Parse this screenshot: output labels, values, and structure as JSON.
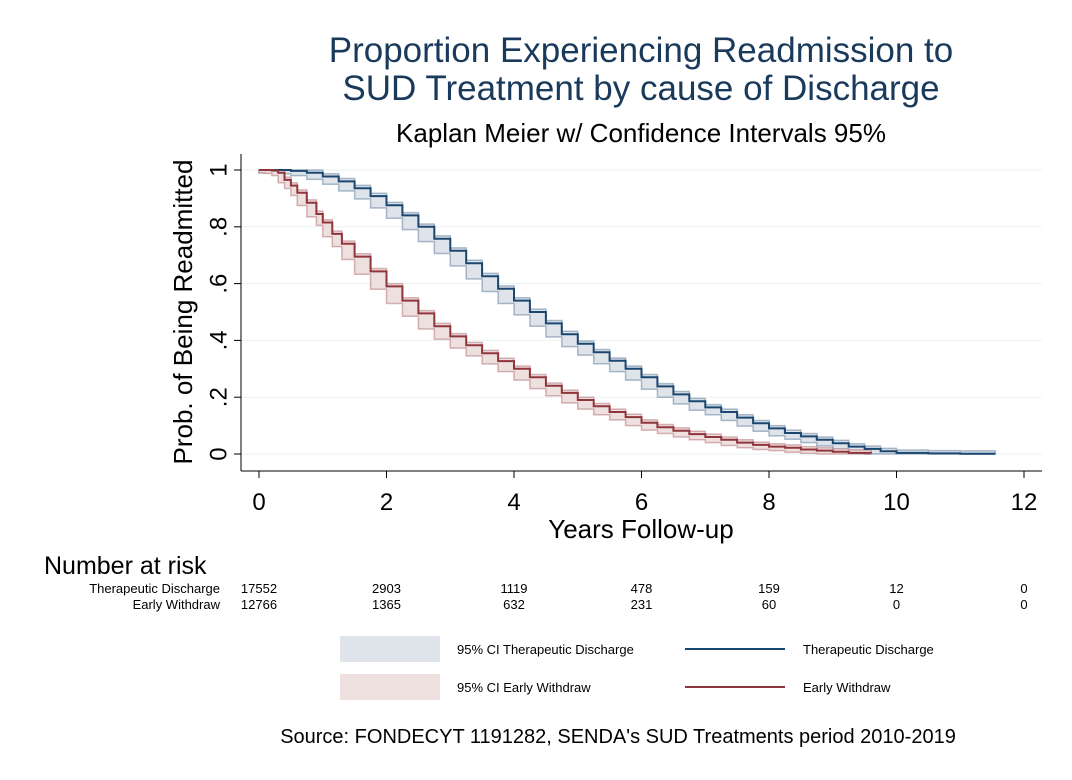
{
  "chart_data": {
    "type": "line",
    "title_line1": "Proportion Experiencing Readmission to",
    "title_line2": "SUD Treatment by cause of Discharge",
    "subtitle": "Kaplan Meier w/ Confidence Intervals 95%",
    "xlabel": "Years Follow-up",
    "ylabel": "Prob. of Being Readmitted",
    "xlim": [
      0,
      12
    ],
    "ylim": [
      0,
      1
    ],
    "xticks": [
      0,
      2,
      4,
      6,
      8,
      10,
      12
    ],
    "xtick_labels": [
      "0",
      "2",
      "4",
      "6",
      "8",
      "10",
      "12"
    ],
    "yticks": [
      0,
      0.2,
      0.4,
      0.6,
      0.8,
      1
    ],
    "ytick_labels": [
      "0",
      ".2",
      ".4",
      ".6",
      ".8",
      "1"
    ],
    "grid": true,
    "series": [
      {
        "name": "Therapeutic Discharge",
        "ci_name": "95% CI Therapeutic Discharge",
        "color": "#1a476f",
        "ci_color": "#dfe3ea",
        "x": [
          0,
          0.3,
          0.5,
          0.75,
          1.0,
          1.25,
          1.5,
          1.75,
          2.0,
          2.25,
          2.5,
          2.75,
          3.0,
          3.25,
          3.5,
          3.75,
          4.0,
          4.25,
          4.5,
          4.75,
          5.0,
          5.25,
          5.5,
          5.75,
          6.0,
          6.25,
          6.5,
          6.75,
          7.0,
          7.25,
          7.5,
          7.75,
          8.0,
          8.25,
          8.5,
          8.75,
          9.0,
          9.25,
          9.5,
          9.75,
          10.0,
          10.5,
          11.0,
          11.55
        ],
        "y": [
          1.0,
          1.0,
          0.997,
          0.99,
          0.977,
          0.96,
          0.936,
          0.908,
          0.876,
          0.84,
          0.8,
          0.758,
          0.716,
          0.672,
          0.626,
          0.582,
          0.54,
          0.5,
          0.46,
          0.422,
          0.388,
          0.358,
          0.328,
          0.3,
          0.27,
          0.238,
          0.21,
          0.186,
          0.164,
          0.148,
          0.128,
          0.108,
          0.09,
          0.074,
          0.062,
          0.05,
          0.038,
          0.026,
          0.018,
          0.01,
          0.004,
          0.002,
          0.001,
          0.001
        ],
        "ci": 0.01
      },
      {
        "name": "Early Withdraw",
        "ci_name": "95% CI Early Withdraw",
        "color": "#90353b",
        "ci_color": "#efe0e0",
        "x": [
          0,
          0.1,
          0.2,
          0.3,
          0.4,
          0.5,
          0.6,
          0.75,
          0.9,
          1.0,
          1.15,
          1.3,
          1.5,
          1.75,
          2.0,
          2.25,
          2.5,
          2.75,
          3.0,
          3.25,
          3.5,
          3.75,
          4.0,
          4.25,
          4.5,
          4.75,
          5.0,
          5.25,
          5.5,
          5.75,
          6.0,
          6.25,
          6.5,
          6.75,
          7.0,
          7.25,
          7.5,
          7.75,
          8.0,
          8.25,
          8.5,
          8.75,
          9.0,
          9.25,
          9.6
        ],
        "y": [
          1.0,
          1.0,
          0.998,
          0.99,
          0.965,
          0.945,
          0.92,
          0.885,
          0.845,
          0.815,
          0.775,
          0.74,
          0.695,
          0.643,
          0.59,
          0.54,
          0.495,
          0.45,
          0.414,
          0.383,
          0.355,
          0.327,
          0.3,
          0.27,
          0.24,
          0.215,
          0.19,
          0.168,
          0.148,
          0.13,
          0.11,
          0.094,
          0.082,
          0.07,
          0.06,
          0.05,
          0.04,
          0.032,
          0.026,
          0.022,
          0.016,
          0.012,
          0.008,
          0.004,
          0.003
        ],
        "ci": 0.01
      }
    ]
  },
  "risk_table": {
    "title": "Number at risk",
    "x": [
      0,
      2,
      4,
      6,
      8,
      10,
      12
    ],
    "rows": [
      {
        "label": "Therapeutic Discharge",
        "values": [
          "17552",
          "2903",
          "1119",
          "478",
          "159",
          "12",
          "0"
        ]
      },
      {
        "label": "Early Withdraw",
        "values": [
          "12766",
          "1365",
          "632",
          "231",
          "60",
          "0",
          "0"
        ]
      }
    ]
  },
  "legend": {
    "items": [
      {
        "label": "95% CI Therapeutic Discharge",
        "kind": "band",
        "color": "#dfe3ea"
      },
      {
        "label": "Therapeutic Discharge",
        "kind": "line",
        "color": "#1a476f"
      },
      {
        "label": "95% CI Early Withdraw",
        "kind": "band",
        "color": "#efe0e0"
      },
      {
        "label": "Early Withdraw",
        "kind": "line",
        "color": "#90353b"
      }
    ]
  },
  "footer": {
    "source": "Source: FONDECYT 1191282, SENDA's SUD Treatments period 2010-2019"
  }
}
